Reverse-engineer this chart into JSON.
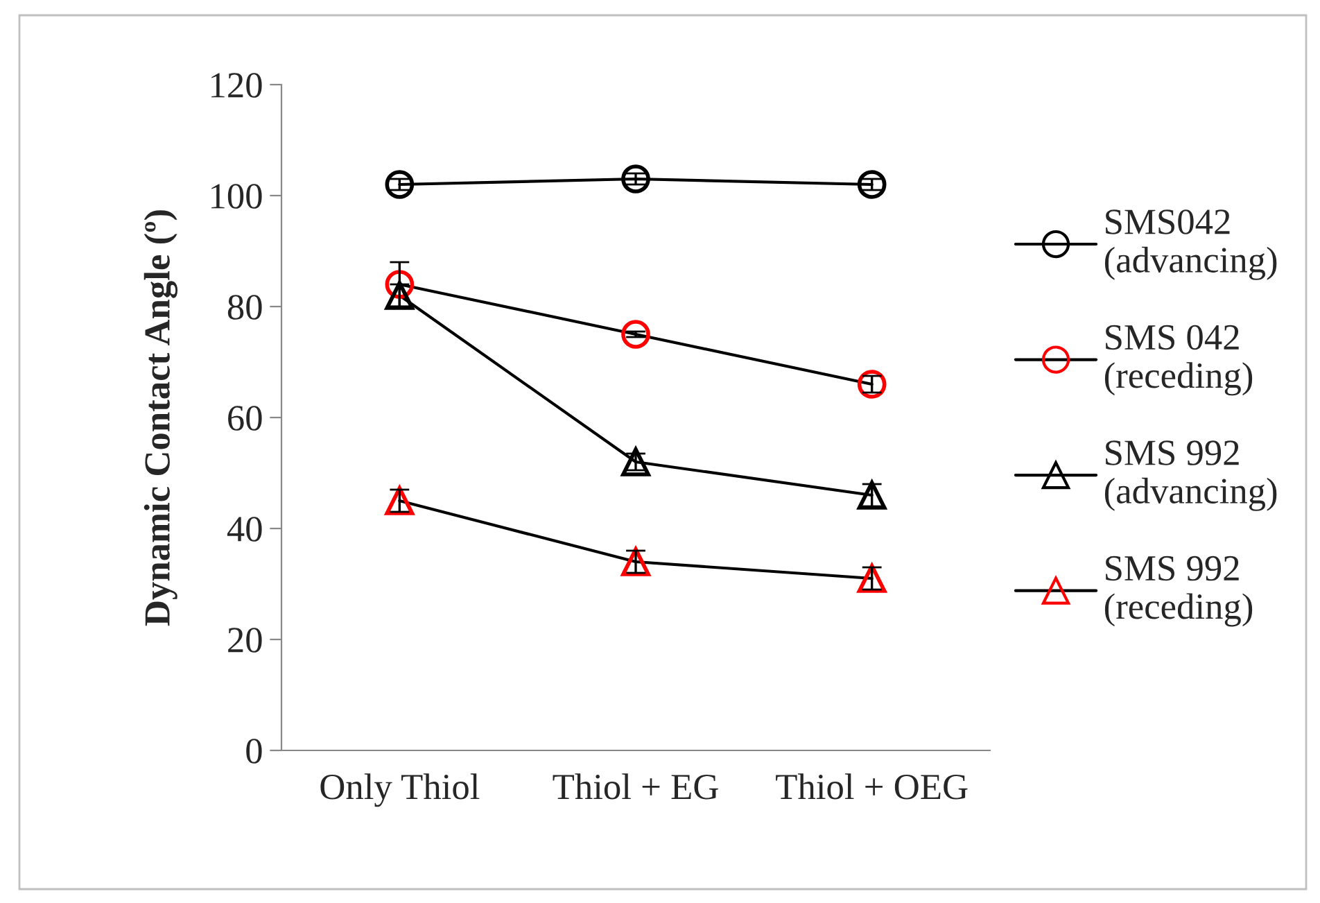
{
  "chart_data": {
    "type": "line",
    "ylabel": "Dynamic Contact Angle (º)",
    "categories": [
      "Only Thiol",
      "Thiol + EG",
      "Thiol + OEG"
    ],
    "series": [
      {
        "name": "SMS042\n(advancing)",
        "color": "#000000",
        "marker": "circle",
        "values": [
          102,
          103,
          102
        ],
        "errors": [
          1,
          1,
          1
        ]
      },
      {
        "name": "SMS 042\n(receding)",
        "color": "#ff0000",
        "marker": "circle",
        "values": [
          84,
          75,
          66
        ],
        "errors": [
          4,
          0.5,
          1.5
        ]
      },
      {
        "name": "SMS 992\n(advancing)",
        "color": "#000000",
        "marker": "triangle",
        "values": [
          82,
          52,
          46
        ],
        "errors": [
          2,
          1.5,
          2
        ]
      },
      {
        "name": "SMS 992\n(receding)",
        "color": "#ff0000",
        "marker": "triangle",
        "values": [
          45,
          34,
          31
        ],
        "errors": [
          2,
          2,
          2
        ]
      }
    ],
    "ylim": [
      0,
      120
    ],
    "yticks": [
      0,
      20,
      40,
      60,
      80,
      100,
      120
    ],
    "grid": false,
    "legend": "right",
    "line_style": "solid"
  }
}
